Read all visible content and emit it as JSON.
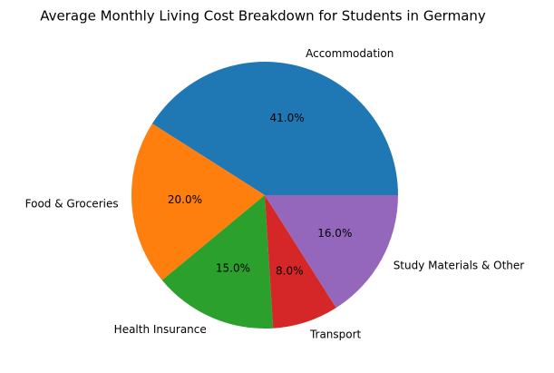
{
  "chart_data": {
    "type": "pie",
    "title": "Average Monthly Living Cost Breakdown for Students in Germany",
    "categories": [
      "Accommodation",
      "Food & Groceries",
      "Health Insurance",
      "Transport",
      "Study Materials & Other"
    ],
    "values": [
      41,
      20,
      15,
      8,
      16
    ],
    "value_labels": [
      "41.0%",
      "20.0%",
      "15.0%",
      "8.0%",
      "16.0%"
    ],
    "colors": [
      "#1f77b4",
      "#ff7f0e",
      "#2ca02c",
      "#d62728",
      "#9467bd"
    ]
  }
}
